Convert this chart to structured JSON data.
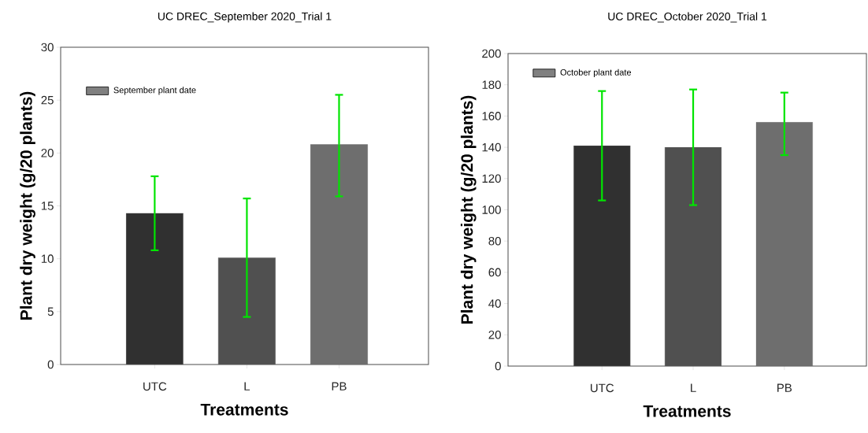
{
  "chart_data": [
    {
      "type": "bar",
      "title": "UC DREC_September 2020_Trial 1",
      "xlabel": "Treatments",
      "ylabel": "Plant dry weight (g/20 plants)",
      "categories": [
        "UTC",
        "L",
        "PB"
      ],
      "series": [
        {
          "name": "September plant date",
          "color": "#808080",
          "colors": [
            "#303030",
            "#505050",
            "#6e6e6e"
          ],
          "values": [
            14.3,
            10.1,
            20.8
          ],
          "errors": [
            [
              10.8,
              17.8
            ],
            [
              4.5,
              15.7
            ],
            [
              15.9,
              25.5
            ]
          ]
        }
      ],
      "ylim": [
        0,
        30
      ],
      "yticks": [
        0,
        5,
        10,
        15,
        20,
        25,
        30
      ],
      "legend": "top left"
    },
    {
      "type": "bar",
      "title": "UC DREC_October 2020_Trial 1",
      "xlabel": "Treatments",
      "ylabel": "Plant dry weight (g/20 plants)",
      "categories": [
        "UTC",
        "L",
        "PB"
      ],
      "series": [
        {
          "name": "October plant date",
          "color": "#808080",
          "colors": [
            "#303030",
            "#505050",
            "#6e6e6e"
          ],
          "values": [
            141,
            140,
            156
          ],
          "errors": [
            [
              106,
              176
            ],
            [
              103,
              177
            ],
            [
              135,
              175
            ]
          ]
        }
      ],
      "ylim": [
        0,
        200
      ],
      "yticks": [
        0,
        20,
        40,
        60,
        80,
        100,
        120,
        140,
        160,
        180,
        200
      ],
      "legend": "top left"
    }
  ]
}
